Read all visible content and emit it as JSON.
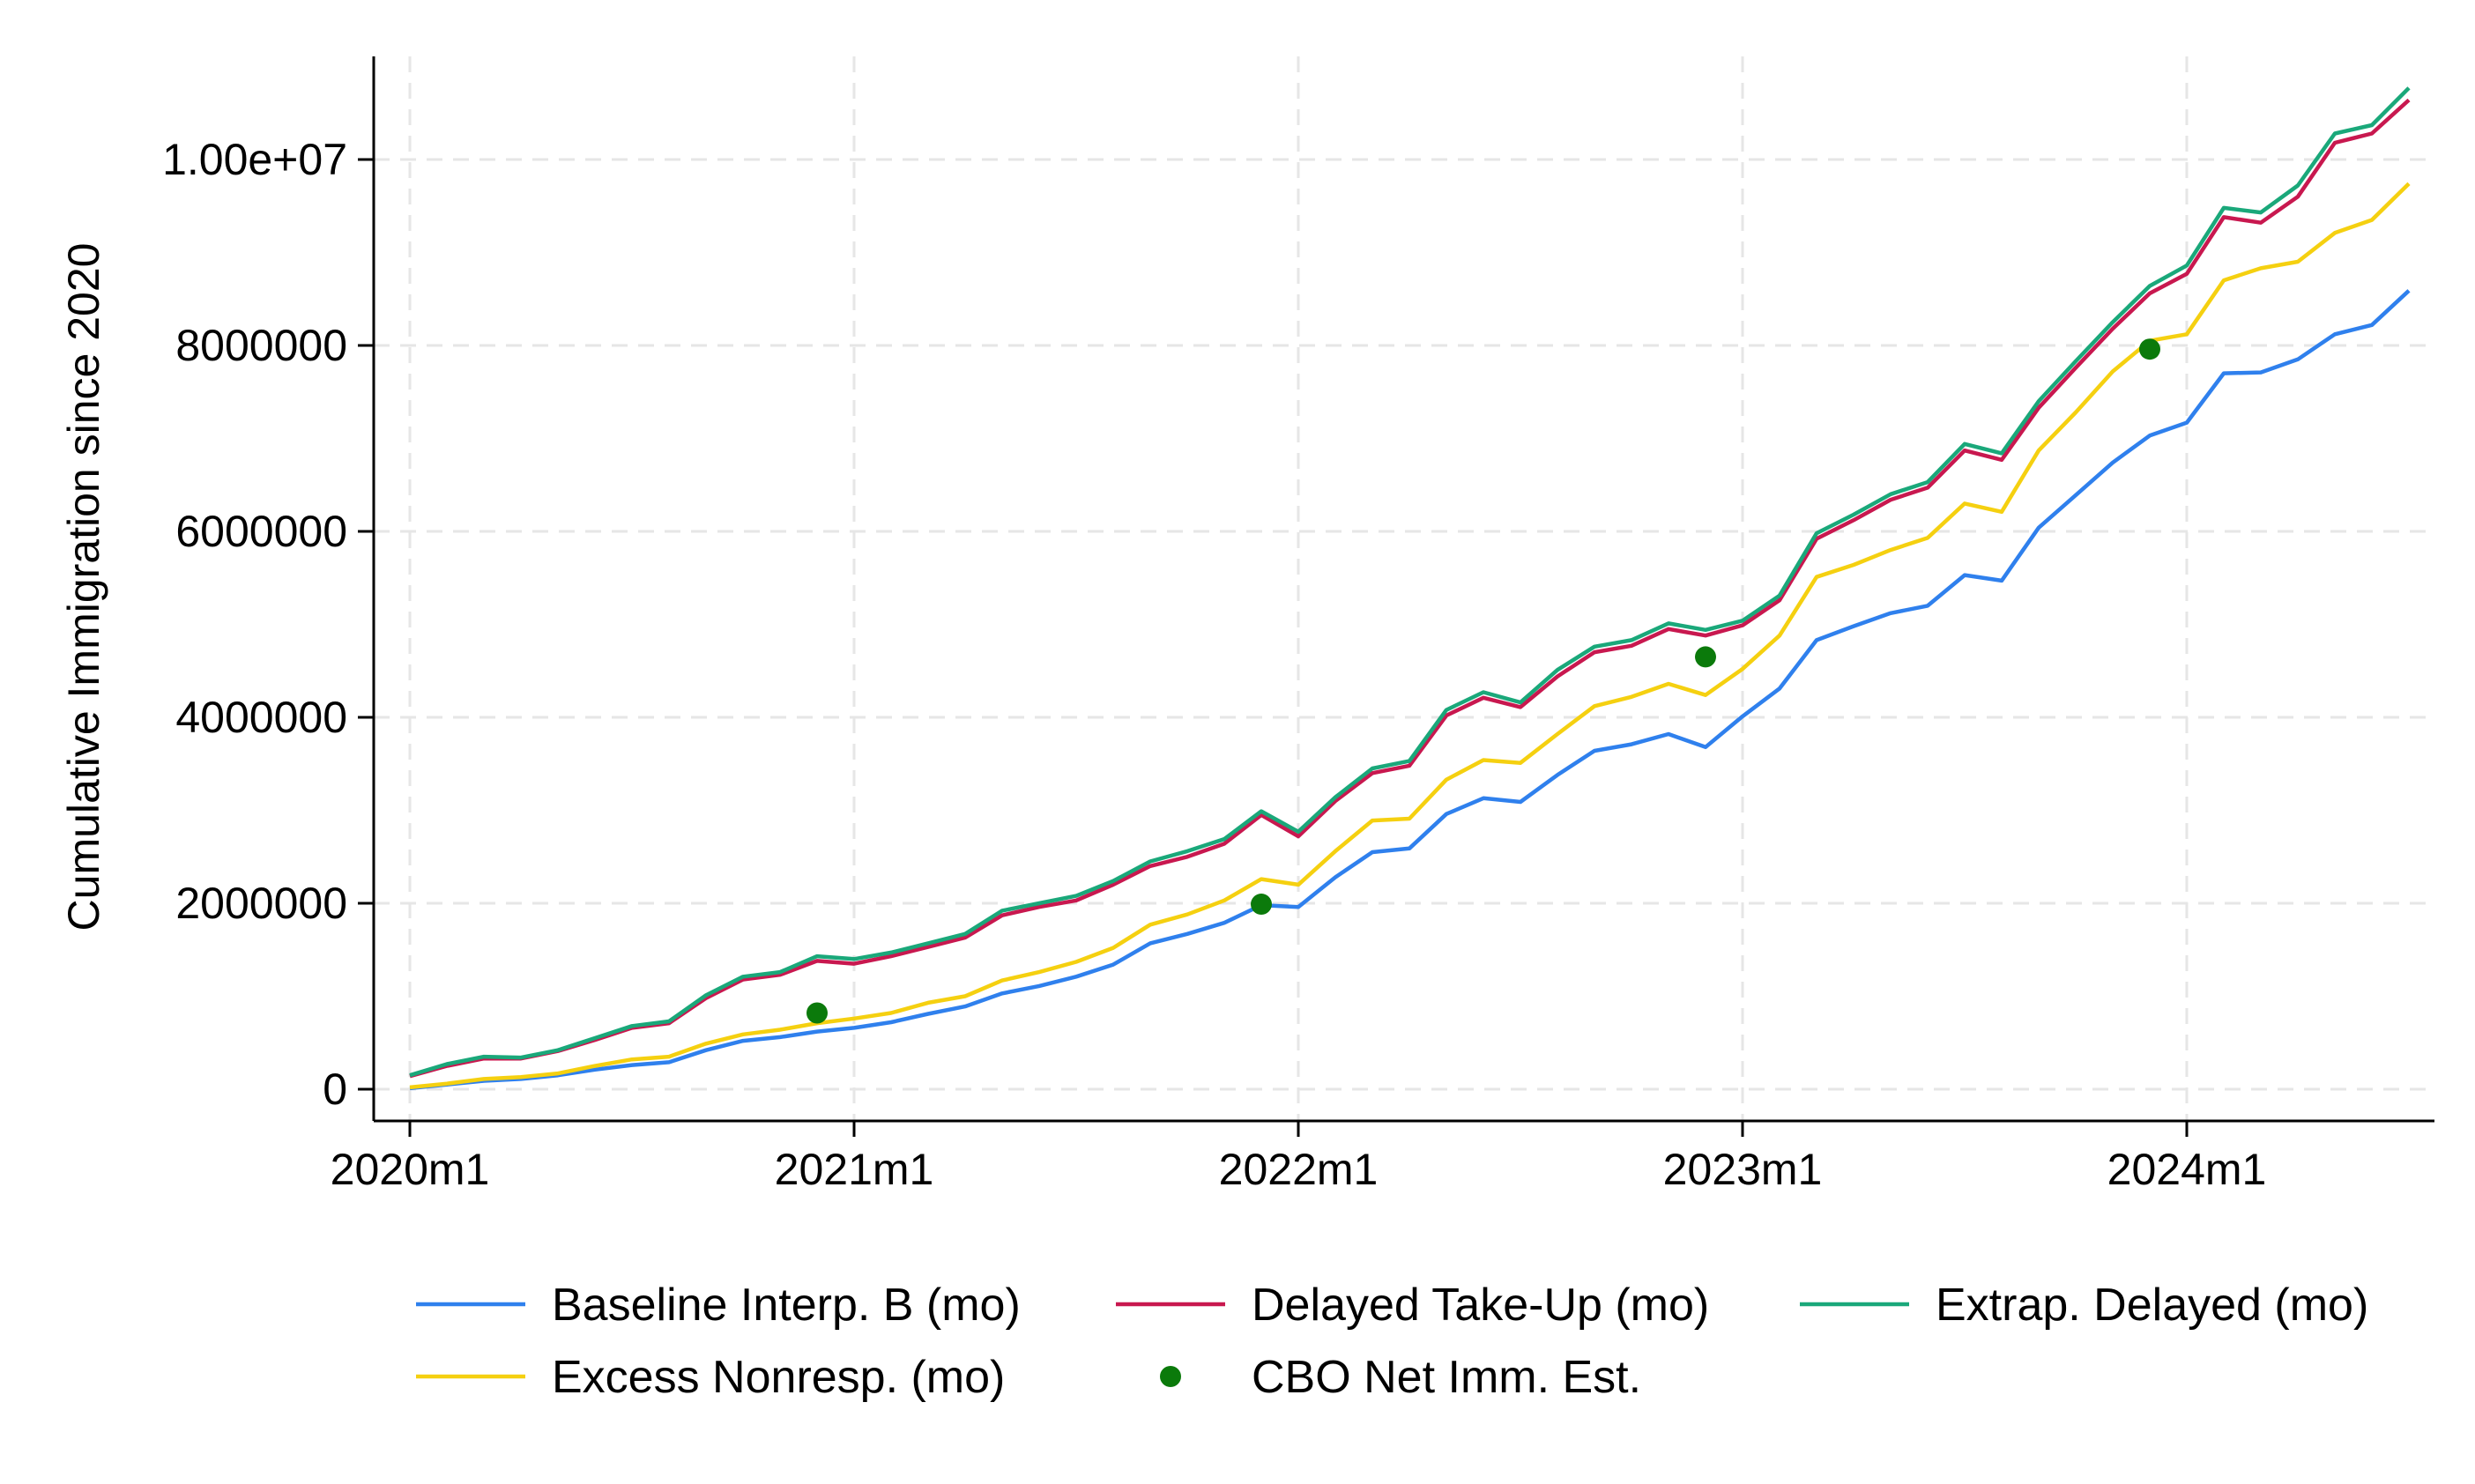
{
  "chart_data": {
    "type": "line",
    "title": "",
    "xlabel": "",
    "ylabel": "Cumulative Immigration since 2020",
    "xlim": [
      0,
      55
    ],
    "ylim": [
      -300000,
      11000000
    ],
    "x_ticks": [
      {
        "value": 0,
        "label": "2020m1"
      },
      {
        "value": 12,
        "label": "2021m1"
      },
      {
        "value": 24,
        "label": "2022m1"
      },
      {
        "value": 36,
        "label": "2023m1"
      },
      {
        "value": 48,
        "label": "2024m1"
      }
    ],
    "y_ticks": [
      {
        "value": 0,
        "label": "0"
      },
      {
        "value": 2000000,
        "label": "2000000"
      },
      {
        "value": 4000000,
        "label": "4000000"
      },
      {
        "value": 6000000,
        "label": "6000000"
      },
      {
        "value": 8000000,
        "label": "8000000"
      },
      {
        "value": 10000000,
        "label": "1.00e+07"
      }
    ],
    "grid": true,
    "legend_position": "bottom",
    "x": [
      "2020m1",
      "2020m2",
      "2020m3",
      "2020m4",
      "2020m5",
      "2020m6",
      "2020m7",
      "2020m8",
      "2020m9",
      "2020m10",
      "2020m11",
      "2020m12",
      "2021m1",
      "2021m2",
      "2021m3",
      "2021m4",
      "2021m5",
      "2021m6",
      "2021m7",
      "2021m8",
      "2021m9",
      "2021m10",
      "2021m11",
      "2021m12",
      "2022m1",
      "2022m2",
      "2022m3",
      "2022m4",
      "2022m5",
      "2022m6",
      "2022m7",
      "2022m8",
      "2022m9",
      "2022m10",
      "2022m11",
      "2022m12",
      "2023m1",
      "2023m2",
      "2023m3",
      "2023m4",
      "2023m5",
      "2023m6",
      "2023m7",
      "2023m8",
      "2023m9",
      "2023m10",
      "2023m11",
      "2023m12",
      "2024m1",
      "2024m2",
      "2024m3",
      "2024m4",
      "2024m5",
      "2024m6",
      "2024m7"
    ],
    "series": [
      {
        "name": "Baseline Interp. B (mo)",
        "type": "line",
        "color": "#2f80ed",
        "values": [
          10000,
          50000,
          90000,
          110000,
          150000,
          210000,
          260000,
          290000,
          420000,
          520000,
          560000,
          620000,
          660000,
          720000,
          810000,
          890000,
          1030000,
          1110000,
          1210000,
          1340000,
          1570000,
          1670000,
          1790000,
          1980000,
          1960000,
          2280000,
          2550000,
          2590000,
          2960000,
          3130000,
          3090000,
          3380000,
          3640000,
          3710000,
          3820000,
          3680000,
          4010000,
          4310000,
          4830000,
          4980000,
          5120000,
          5200000,
          5530000,
          5470000,
          6040000,
          6390000,
          6740000,
          7030000,
          7170000,
          7700000,
          7710000,
          7850000,
          8120000,
          8220000,
          8590000
        ]
      },
      {
        "name": "Delayed Take-Up (mo)",
        "type": "line",
        "color": "#c8184f",
        "values": [
          140000,
          250000,
          330000,
          330000,
          410000,
          530000,
          660000,
          710000,
          980000,
          1180000,
          1230000,
          1380000,
          1350000,
          1430000,
          1530000,
          1630000,
          1870000,
          1960000,
          2030000,
          2200000,
          2400000,
          2500000,
          2640000,
          2950000,
          2720000,
          3100000,
          3400000,
          3480000,
          4020000,
          4210000,
          4110000,
          4440000,
          4700000,
          4770000,
          4950000,
          4880000,
          4990000,
          5260000,
          5920000,
          6120000,
          6340000,
          6470000,
          6870000,
          6770000,
          7330000,
          7760000,
          8180000,
          8560000,
          8770000,
          9380000,
          9320000,
          9600000,
          10180000,
          10280000,
          10640000
        ]
      },
      {
        "name": "Extrap. Delayed (mo)",
        "type": "line",
        "color": "#1aa87a",
        "values": [
          150000,
          270000,
          350000,
          340000,
          420000,
          550000,
          680000,
          730000,
          1010000,
          1210000,
          1260000,
          1430000,
          1400000,
          1470000,
          1570000,
          1670000,
          1920000,
          2000000,
          2080000,
          2240000,
          2450000,
          2560000,
          2690000,
          2990000,
          2770000,
          3140000,
          3450000,
          3530000,
          4080000,
          4270000,
          4160000,
          4510000,
          4760000,
          4830000,
          5010000,
          4940000,
          5040000,
          5310000,
          5980000,
          6180000,
          6400000,
          6530000,
          6940000,
          6840000,
          7400000,
          7830000,
          8250000,
          8640000,
          8860000,
          9480000,
          9430000,
          9720000,
          10280000,
          10370000,
          10770000
        ]
      },
      {
        "name": "Excess Nonresp. (mo)",
        "type": "line",
        "color": "#f5d010",
        "values": [
          20000,
          60000,
          110000,
          130000,
          170000,
          250000,
          320000,
          350000,
          490000,
          590000,
          640000,
          710000,
          760000,
          820000,
          930000,
          1000000,
          1170000,
          1260000,
          1370000,
          1520000,
          1770000,
          1880000,
          2030000,
          2260000,
          2200000,
          2560000,
          2890000,
          2910000,
          3330000,
          3540000,
          3510000,
          3820000,
          4120000,
          4220000,
          4360000,
          4240000,
          4520000,
          4880000,
          5510000,
          5640000,
          5800000,
          5930000,
          6300000,
          6210000,
          6870000,
          7280000,
          7720000,
          8050000,
          8120000,
          8700000,
          8830000,
          8900000,
          9210000,
          9350000,
          9740000
        ]
      },
      {
        "name": "CBO Net Imm. Est.",
        "type": "scatter",
        "color": "#0b7a0b",
        "points": [
          {
            "x": "2020m12",
            "y": 820000
          },
          {
            "x": "2021m12",
            "y": 1990000
          },
          {
            "x": "2022m12",
            "y": 4650000
          },
          {
            "x": "2023m12",
            "y": 7960000
          }
        ]
      }
    ],
    "legend_order": [
      "Baseline Interp. B (mo)",
      "Delayed Take-Up (mo)",
      "Extrap. Delayed (mo)",
      "Excess Nonresp. (mo)",
      "CBO Net Imm. Est."
    ]
  }
}
